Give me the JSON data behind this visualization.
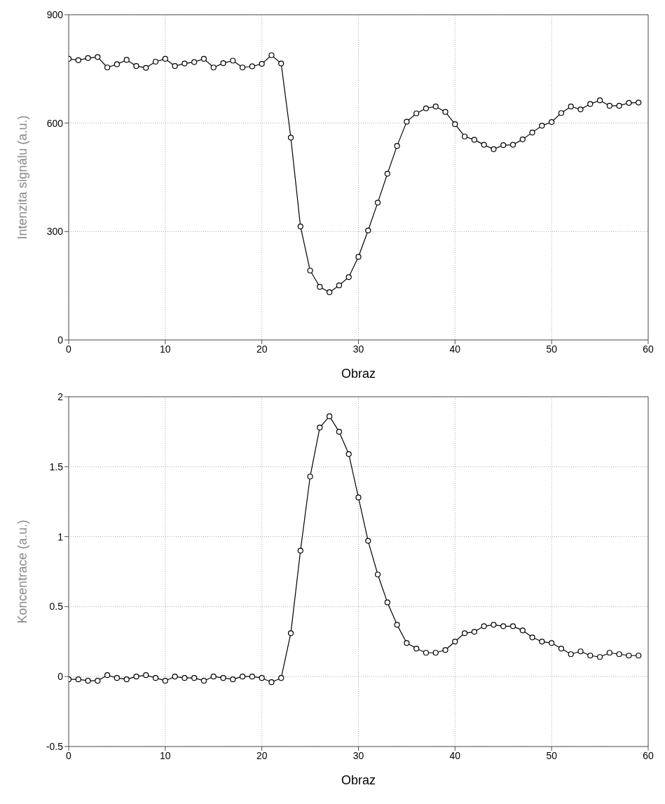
{
  "chart_data": [
    {
      "type": "line",
      "xlabel": "Obraz",
      "ylabel": "Intenzita signálu (a.u.)",
      "x": [
        0,
        1,
        2,
        3,
        4,
        5,
        6,
        7,
        8,
        9,
        10,
        11,
        12,
        13,
        14,
        15,
        16,
        17,
        18,
        19,
        20,
        21,
        22,
        23,
        24,
        25,
        26,
        27,
        28,
        29,
        30,
        31,
        32,
        33,
        34,
        35,
        36,
        37,
        38,
        39,
        40,
        41,
        42,
        43,
        44,
        45,
        46,
        47,
        48,
        49,
        50,
        51,
        52,
        53,
        54,
        55,
        56,
        57,
        58,
        59
      ],
      "series": [
        {
          "color": "#000000",
          "values": [
            778,
            774,
            780,
            783,
            754,
            763,
            775,
            758,
            753,
            770,
            778,
            758,
            765,
            769,
            778,
            754,
            766,
            773,
            754,
            757,
            764,
            788,
            765,
            560,
            314,
            192,
            147,
            132,
            151,
            174,
            230,
            303,
            380,
            460,
            537,
            604,
            627,
            641,
            646,
            631,
            597,
            563,
            554,
            540,
            528,
            539,
            540,
            555,
            574,
            593,
            603,
            628,
            646,
            638,
            653,
            663,
            648,
            648,
            656,
            657
          ]
        }
      ],
      "xlim": [
        0,
        60
      ],
      "xticks": [
        0,
        10,
        20,
        30,
        40,
        50,
        60
      ],
      "ylim": [
        0,
        900
      ],
      "yticks": [
        0,
        300,
        600,
        900
      ],
      "grid": true,
      "marker": "circle",
      "line_style": "solid"
    },
    {
      "type": "line",
      "xlabel": "Obraz",
      "ylabel": "Koncentrace (a.u.)",
      "x": [
        0,
        1,
        2,
        3,
        4,
        5,
        6,
        7,
        8,
        9,
        10,
        11,
        12,
        13,
        14,
        15,
        16,
        17,
        18,
        19,
        20,
        21,
        22,
        23,
        24,
        25,
        26,
        27,
        28,
        29,
        30,
        31,
        32,
        33,
        34,
        35,
        36,
        37,
        38,
        39,
        40,
        41,
        42,
        43,
        44,
        45,
        46,
        47,
        48,
        49,
        50,
        51,
        52,
        53,
        54,
        55,
        56,
        57,
        58,
        59
      ],
      "series": [
        {
          "color": "#000000",
          "values": [
            -0.02,
            -0.02,
            -0.03,
            -0.03,
            0.01,
            -0.01,
            -0.02,
            0.0,
            0.01,
            -0.01,
            -0.03,
            0.0,
            -0.01,
            -0.01,
            -0.03,
            0.0,
            -0.01,
            -0.02,
            0.0,
            0.0,
            -0.01,
            -0.04,
            -0.01,
            0.31,
            0.9,
            1.43,
            1.78,
            1.86,
            1.75,
            1.59,
            1.28,
            0.97,
            0.73,
            0.53,
            0.37,
            0.24,
            0.2,
            0.17,
            0.17,
            0.19,
            0.25,
            0.31,
            0.32,
            0.36,
            0.37,
            0.36,
            0.36,
            0.33,
            0.28,
            0.25,
            0.24,
            0.2,
            0.16,
            0.18,
            0.15,
            0.14,
            0.17,
            0.16,
            0.15,
            0.15
          ]
        }
      ],
      "xlim": [
        0,
        60
      ],
      "xticks": [
        0,
        10,
        20,
        30,
        40,
        50,
        60
      ],
      "ylim": [
        -0.5,
        2
      ],
      "yticks": [
        -0.5,
        0,
        0.5,
        1,
        1.5,
        2
      ],
      "grid": true,
      "marker": "circle",
      "line_style": "solid"
    }
  ]
}
